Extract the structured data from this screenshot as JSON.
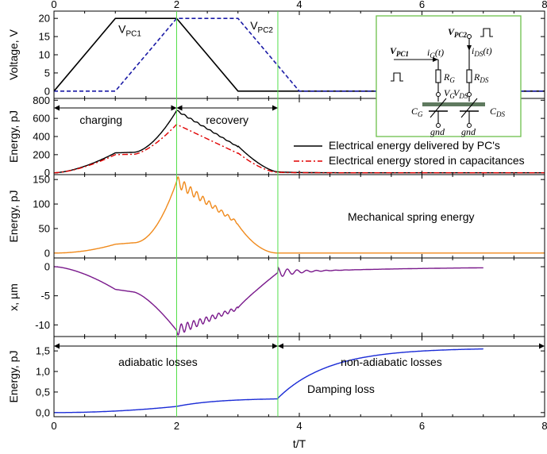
{
  "chart_data": {
    "type": "line",
    "xlabel": "t/T",
    "xlim": [
      0,
      8
    ],
    "x_ticks": [
      "0",
      "2",
      "4",
      "6",
      "8"
    ],
    "green_markers_x": [
      2,
      3.65
    ],
    "panels": [
      {
        "id": "voltage",
        "ylabel": "Voltage, V",
        "ylim": [
          -2,
          22
        ],
        "y_ticks": [
          "0",
          "5",
          "10",
          "15",
          "20"
        ],
        "series": [
          {
            "name": "V_PC1",
            "color": "#000000",
            "dash": "solid",
            "points": [
              [
                0,
                0
              ],
              [
                1,
                20
              ],
              [
                2,
                20
              ],
              [
                3,
                0
              ],
              [
                8,
                0
              ]
            ]
          },
          {
            "name": "V_PC2",
            "color": "#1a1aa6",
            "dash": "dashed",
            "points": [
              [
                0,
                0
              ],
              [
                1,
                0
              ],
              [
                2,
                20
              ],
              [
                3,
                20
              ],
              [
                4,
                0
              ],
              [
                8,
                0
              ]
            ]
          }
        ],
        "annotations": [
          {
            "text": "V",
            "sub": "PC1",
            "x": 1.05,
            "y": 16
          },
          {
            "text": "V",
            "sub": "PC2",
            "x": 3.2,
            "y": 17
          }
        ]
      },
      {
        "id": "energy",
        "ylabel": "Energy, pJ",
        "ylim": [
          -20,
          820
        ],
        "y_ticks": [
          "0",
          "200",
          "400",
          "600",
          "800"
        ],
        "series": [
          {
            "name": "Electrical energy delivered by PC's",
            "color": "#000000",
            "dash": "solid"
          },
          {
            "name": "Electrical energy stored in capacitances",
            "color": "#e00000",
            "dash": "dashdot"
          }
        ],
        "arrows": [
          {
            "from": 0,
            "to": 2,
            "label": "charging"
          },
          {
            "from": 2,
            "to": 3.65,
            "label": "recovery"
          }
        ]
      },
      {
        "id": "spring",
        "ylabel": "Energy, pJ",
        "ylim": [
          -10,
          160
        ],
        "y_ticks": [
          "0",
          "50",
          "100",
          "150"
        ],
        "series": [
          {
            "name": "Mechanical spring energy",
            "color": "#f08a1c"
          }
        ],
        "label": "Mechanical spring energy"
      },
      {
        "id": "displacement",
        "ylabel": "x, µm",
        "ylim": [
          -12,
          1.5
        ],
        "y_ticks": [
          "0",
          "-5",
          "-10"
        ],
        "series": [
          {
            "name": "x",
            "color": "#7a1a8c"
          }
        ]
      },
      {
        "id": "damping",
        "ylabel": "Energy, pJ",
        "ylim": [
          -0.1,
          1.85
        ],
        "y_ticks": [
          "0,0",
          "0,5",
          "1,0",
          "1,5"
        ],
        "series": [
          {
            "name": "Damping loss",
            "color": "#1a2bd6"
          }
        ],
        "label": "Damping loss",
        "arrows": [
          {
            "from": 0,
            "to": 3.65,
            "label": "adiabatic losses"
          },
          {
            "from": 3.65,
            "to": 8,
            "label": "non-adiabatic losses"
          }
        ]
      }
    ],
    "inset": {
      "labels": {
        "vpc1": "V",
        "vpc1_sub": "PC1",
        "vpc2": "V",
        "vpc2_sub": "PC2",
        "ig": "i",
        "ig_sub": "G",
        "ig_t": "(t)",
        "ids": "i",
        "ids_sub": "DS",
        "ids_t": "(t)",
        "rg": "R",
        "rg_sub": "G",
        "rds": "R",
        "rds_sub": "DS",
        "vg": "V",
        "vg_sub": "G",
        "vds": "V",
        "vds_sub": "DS",
        "cg": "C",
        "cg_sub": "G",
        "cds": "C",
        "cds_sub": "DS",
        "gnd1": "gnd",
        "gnd2": "gnd"
      }
    }
  }
}
